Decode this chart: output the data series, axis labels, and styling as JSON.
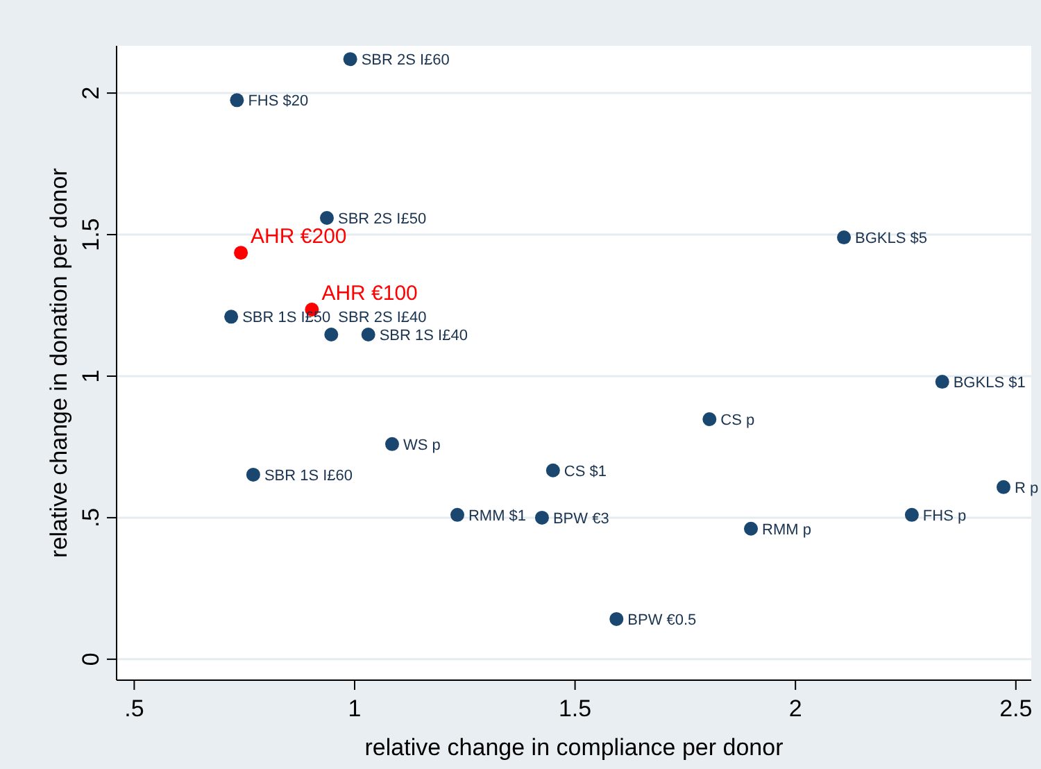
{
  "chart_data": {
    "type": "scatter",
    "xlabel": "relative change in compliance per donor",
    "ylabel": "relative change in donation per donor",
    "xlim": [
      0.46,
      2.535
    ],
    "ylim": [
      -0.074,
      2.167
    ],
    "xticks": [
      {
        "value": 0.5,
        "label": ".5"
      },
      1,
      1.5,
      2,
      2.5
    ],
    "yticks": [
      0,
      {
        "value": 0.5,
        "label": ".5"
      },
      1,
      1.5,
      2
    ],
    "grid": "y",
    "marker": "circle",
    "series": [
      {
        "color": "#1a476f",
        "x": [
          0.99,
          0.733,
          0.937,
          0.72,
          0.947,
          1.031,
          1.085,
          0.77,
          1.233,
          1.425,
          1.45,
          1.805,
          1.899,
          1.594,
          2.11,
          2.333,
          2.264,
          2.472
        ],
        "values": [
          2.12,
          1.975,
          1.559,
          1.21,
          1.147,
          1.147,
          0.76,
          0.652,
          0.51,
          0.5,
          0.667,
          0.848,
          0.461,
          0.142,
          1.49,
          0.98,
          0.51,
          0.608
        ]
      },
      {
        "color": "#ff0000",
        "x": [
          0.742,
          0.903
        ],
        "values": [
          1.436,
          1.235
        ]
      }
    ],
    "annotations": [
      {
        "text": "SBR 2S I£60",
        "x": 0.99,
        "y": 2.12
      },
      {
        "text": "FHS $20",
        "x": 0.733,
        "y": 1.975
      },
      {
        "text": "SBR 2S I£50",
        "x": 0.937,
        "y": 1.559
      },
      {
        "text": "SBR 1S I£50",
        "x": 0.72,
        "y": 1.21
      },
      {
        "text": "SBR 2S I£40",
        "x": 0.947,
        "y": 1.147
      },
      {
        "text": "SBR 1S I£40",
        "x": 1.031,
        "y": 1.147
      },
      {
        "text": "WS p",
        "x": 1.085,
        "y": 0.76
      },
      {
        "text": "SBR 1S I£60",
        "x": 0.77,
        "y": 0.652
      },
      {
        "text": "RMM $1",
        "x": 1.233,
        "y": 0.51
      },
      {
        "text": "BPW €3",
        "x": 1.425,
        "y": 0.5
      },
      {
        "text": "CS $1",
        "x": 1.45,
        "y": 0.667
      },
      {
        "text": "CS p",
        "x": 1.805,
        "y": 0.848
      },
      {
        "text": "RMM p",
        "x": 1.899,
        "y": 0.461
      },
      {
        "text": "BPW €0.5",
        "x": 1.594,
        "y": 0.142
      },
      {
        "text": "BGKLS $5",
        "x": 2.11,
        "y": 1.49
      },
      {
        "text": "BGKLS $1",
        "x": 2.333,
        "y": 0.98
      },
      {
        "text": "FHS p",
        "x": 2.264,
        "y": 0.51
      },
      {
        "text": "R p",
        "x": 2.472,
        "y": 0.608
      },
      {
        "text": "AHR €200",
        "x": 0.742,
        "y": 1.436
      },
      {
        "text": "AHR €100",
        "x": 0.903,
        "y": 1.235
      }
    ]
  }
}
